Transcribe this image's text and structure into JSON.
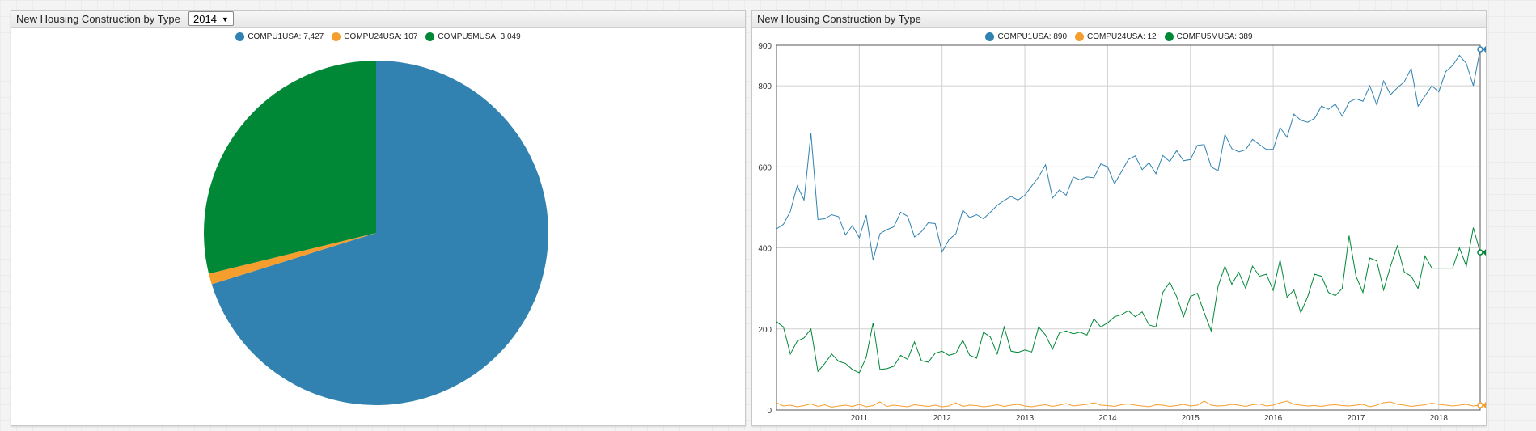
{
  "left_panel": {
    "title": "New Housing Construction by Type",
    "year_select": "2014",
    "legend": [
      {
        "label": "COMPU1USA: 7,427",
        "color": "#3182b0"
      },
      {
        "label": "COMPU24USA: 107",
        "color": "#f59e2e"
      },
      {
        "label": "COMPU5MUSA: 3,049",
        "color": "#008837"
      }
    ]
  },
  "right_panel": {
    "title": "New Housing Construction by Type",
    "legend": [
      {
        "label": "COMPU1USA: 890",
        "color": "#3182b0"
      },
      {
        "label": "COMPU24USA: 12",
        "color": "#f59e2e"
      },
      {
        "label": "COMPU5MUSA: 389",
        "color": "#008837"
      }
    ]
  },
  "chart_data": [
    {
      "type": "pie",
      "title": "New Housing Construction by Type",
      "categories": [
        "COMPU1USA",
        "COMPU24USA",
        "COMPU5MUSA"
      ],
      "values": [
        7427,
        107,
        3049
      ],
      "colors": [
        "#3182b0",
        "#f59e2e",
        "#008837"
      ],
      "legend_placement": "top-center"
    },
    {
      "type": "line",
      "title": "New Housing Construction by Type",
      "xlabel": "",
      "ylabel": "",
      "xlim": [
        "2010-01",
        "2018-05"
      ],
      "ylim": [
        0,
        900
      ],
      "yticks": [
        0,
        200,
        400,
        600,
        800,
        900
      ],
      "xticks": [
        "2011",
        "2012",
        "2013",
        "2014",
        "2015",
        "2016",
        "2017",
        "2018"
      ],
      "grid": true,
      "legend_placement": "top-center",
      "x_start": "2010-01",
      "x_step": "1 month",
      "series": [
        {
          "name": "COMPU1USA",
          "color": "#3182b0",
          "last_value_label": "890",
          "values": [
            447,
            458,
            490,
            553,
            518,
            683,
            470,
            472,
            482,
            477,
            432,
            455,
            425,
            481,
            370,
            435,
            445,
            452,
            488,
            478,
            427,
            440,
            462,
            460,
            390,
            420,
            435,
            493,
            475,
            482,
            472,
            488,
            505,
            517,
            527,
            518,
            530,
            553,
            575,
            605,
            523,
            543,
            530,
            575,
            568,
            575,
            573,
            607,
            600,
            558,
            588,
            618,
            627,
            593,
            610,
            583,
            628,
            613,
            640,
            615,
            618,
            653,
            655,
            600,
            590,
            680,
            645,
            637,
            642,
            668,
            655,
            643,
            643,
            697,
            673,
            730,
            715,
            710,
            720,
            750,
            742,
            755,
            725,
            760,
            768,
            762,
            800,
            753,
            812,
            778,
            795,
            810,
            843,
            750,
            775,
            800,
            785,
            835,
            850,
            875,
            855,
            800,
            890
          ]
        },
        {
          "name": "COMPU24USA",
          "color": "#f59e2e",
          "last_value_label": "12",
          "values": [
            18,
            10,
            12,
            8,
            11,
            15,
            9,
            13,
            7,
            10,
            12,
            9,
            14,
            8,
            11,
            20,
            9,
            12,
            10,
            8,
            13,
            11,
            9,
            12,
            8,
            10,
            18,
            9,
            12,
            11,
            8,
            10,
            13,
            9,
            12,
            14,
            10,
            8,
            11,
            13,
            9,
            12,
            16,
            10,
            12,
            14,
            18,
            12,
            11,
            9,
            13,
            15,
            12,
            10,
            8,
            13,
            12,
            9,
            11,
            14,
            10,
            12,
            22,
            12,
            10,
            11,
            14,
            12,
            9,
            13,
            15,
            10,
            12,
            18,
            22,
            14,
            12,
            10,
            11,
            9,
            12,
            13,
            11,
            10,
            12,
            14,
            8,
            12,
            18,
            20,
            14,
            12,
            9,
            11,
            13,
            17,
            14,
            12,
            10,
            12,
            14,
            10,
            12
          ]
        },
        {
          "name": "COMPU5MUSA",
          "color": "#008837",
          "last_value_label": "389",
          "values": [
            218,
            205,
            138,
            170,
            178,
            200,
            95,
            115,
            138,
            120,
            115,
            100,
            92,
            130,
            215,
            100,
            102,
            108,
            135,
            125,
            168,
            122,
            118,
            140,
            145,
            135,
            140,
            172,
            135,
            128,
            192,
            180,
            138,
            205,
            145,
            142,
            148,
            143,
            205,
            185,
            150,
            190,
            195,
            188,
            192,
            185,
            225,
            205,
            215,
            230,
            235,
            245,
            230,
            242,
            210,
            205,
            290,
            315,
            280,
            230,
            280,
            288,
            240,
            195,
            305,
            355,
            310,
            340,
            300,
            355,
            330,
            335,
            295,
            370,
            278,
            296,
            240,
            280,
            335,
            330,
            290,
            282,
            300,
            430,
            330,
            290,
            375,
            368,
            296,
            355,
            405,
            340,
            330,
            300,
            380,
            350,
            350,
            350,
            350,
            400,
            355,
            450,
            389
          ]
        }
      ]
    }
  ]
}
